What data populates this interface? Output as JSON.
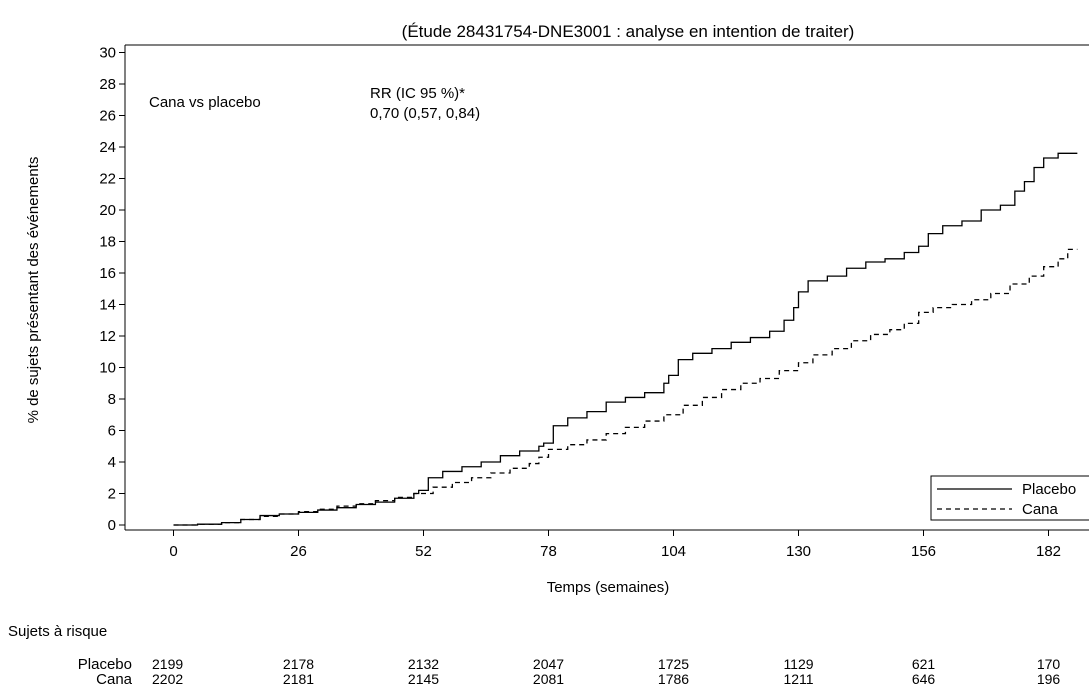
{
  "chart_data": {
    "type": "line",
    "title": "(Étude 28431754-DNE3001 : analyse en intention de traiter)",
    "xlabel": "Temps (semaines)",
    "ylabel": "% de sujets présentant des événements",
    "xlim": [
      -10,
      188
    ],
    "ylim": [
      0,
      30
    ],
    "xticks": [
      0,
      26,
      52,
      78,
      104,
      130,
      156,
      182
    ],
    "yticks": [
      0,
      2,
      4,
      6,
      8,
      10,
      12,
      14,
      16,
      18,
      20,
      22,
      24,
      26,
      28,
      30
    ],
    "annotations": {
      "comparison": "Cana vs placebo",
      "rr_header": "RR (IC 95 %)*",
      "rr_value": "0,70 (0,57, 0,84)"
    },
    "legend_placement": "bottom-right",
    "series": [
      {
        "name": "Placebo",
        "style": "solid",
        "points": [
          [
            0,
            0
          ],
          [
            5,
            0.05
          ],
          [
            10,
            0.15
          ],
          [
            14,
            0.35
          ],
          [
            18,
            0.6
          ],
          [
            22,
            0.7
          ],
          [
            26,
            0.8
          ],
          [
            30,
            0.95
          ],
          [
            34,
            1.1
          ],
          [
            38,
            1.3
          ],
          [
            42,
            1.45
          ],
          [
            46,
            1.7
          ],
          [
            50,
            2.0
          ],
          [
            51,
            2.2
          ],
          [
            53,
            3.0
          ],
          [
            56,
            3.4
          ],
          [
            60,
            3.7
          ],
          [
            64,
            4.0
          ],
          [
            68,
            4.4
          ],
          [
            72,
            4.7
          ],
          [
            76,
            5.0
          ],
          [
            77,
            5.2
          ],
          [
            79,
            6.3
          ],
          [
            82,
            6.8
          ],
          [
            86,
            7.2
          ],
          [
            90,
            7.8
          ],
          [
            94,
            8.1
          ],
          [
            98,
            8.4
          ],
          [
            102,
            9.0
          ],
          [
            103,
            9.5
          ],
          [
            105,
            10.5
          ],
          [
            108,
            10.9
          ],
          [
            112,
            11.2
          ],
          [
            116,
            11.6
          ],
          [
            120,
            11.9
          ],
          [
            124,
            12.3
          ],
          [
            127,
            13.0
          ],
          [
            129,
            13.8
          ],
          [
            130,
            14.8
          ],
          [
            132,
            15.5
          ],
          [
            136,
            15.8
          ],
          [
            140,
            16.3
          ],
          [
            144,
            16.7
          ],
          [
            148,
            16.9
          ],
          [
            152,
            17.3
          ],
          [
            155,
            17.7
          ],
          [
            157,
            18.5
          ],
          [
            160,
            19.0
          ],
          [
            164,
            19.3
          ],
          [
            168,
            20.0
          ],
          [
            172,
            20.3
          ],
          [
            175,
            21.2
          ],
          [
            177,
            21.8
          ],
          [
            179,
            22.7
          ],
          [
            181,
            23.3
          ],
          [
            184,
            23.6
          ],
          [
            188,
            23.6
          ]
        ]
      },
      {
        "name": "Cana",
        "style": "dashed",
        "points": [
          [
            0,
            0
          ],
          [
            5,
            0.05
          ],
          [
            10,
            0.15
          ],
          [
            14,
            0.35
          ],
          [
            18,
            0.55
          ],
          [
            22,
            0.7
          ],
          [
            26,
            0.85
          ],
          [
            30,
            1.0
          ],
          [
            34,
            1.2
          ],
          [
            38,
            1.35
          ],
          [
            42,
            1.55
          ],
          [
            46,
            1.75
          ],
          [
            50,
            2.0
          ],
          [
            54,
            2.4
          ],
          [
            58,
            2.7
          ],
          [
            62,
            3.0
          ],
          [
            66,
            3.3
          ],
          [
            70,
            3.6
          ],
          [
            74,
            3.9
          ],
          [
            76,
            4.3
          ],
          [
            78,
            4.8
          ],
          [
            82,
            5.1
          ],
          [
            86,
            5.4
          ],
          [
            90,
            5.8
          ],
          [
            94,
            6.2
          ],
          [
            98,
            6.6
          ],
          [
            102,
            7.0
          ],
          [
            106,
            7.6
          ],
          [
            110,
            8.1
          ],
          [
            114,
            8.6
          ],
          [
            118,
            9.0
          ],
          [
            122,
            9.3
          ],
          [
            126,
            9.8
          ],
          [
            130,
            10.3
          ],
          [
            133,
            10.8
          ],
          [
            137,
            11.2
          ],
          [
            141,
            11.7
          ],
          [
            145,
            12.1
          ],
          [
            149,
            12.4
          ],
          [
            152,
            12.8
          ],
          [
            155,
            13.5
          ],
          [
            158,
            13.8
          ],
          [
            162,
            14.0
          ],
          [
            166,
            14.3
          ],
          [
            170,
            14.7
          ],
          [
            174,
            15.3
          ],
          [
            178,
            15.8
          ],
          [
            181,
            16.4
          ],
          [
            184,
            16.9
          ],
          [
            186,
            17.5
          ],
          [
            188,
            17.5
          ]
        ]
      }
    ],
    "risk_table": {
      "header": "Sujets à risque",
      "rows": [
        {
          "label": "Placebo",
          "values": [
            "2199",
            "2178",
            "2132",
            "2047",
            "1725",
            "1129",
            "621",
            "170"
          ]
        },
        {
          "label": "Cana",
          "values": [
            "2202",
            "2181",
            "2145",
            "2081",
            "1786",
            "1211",
            "646",
            "196"
          ]
        }
      ]
    }
  }
}
